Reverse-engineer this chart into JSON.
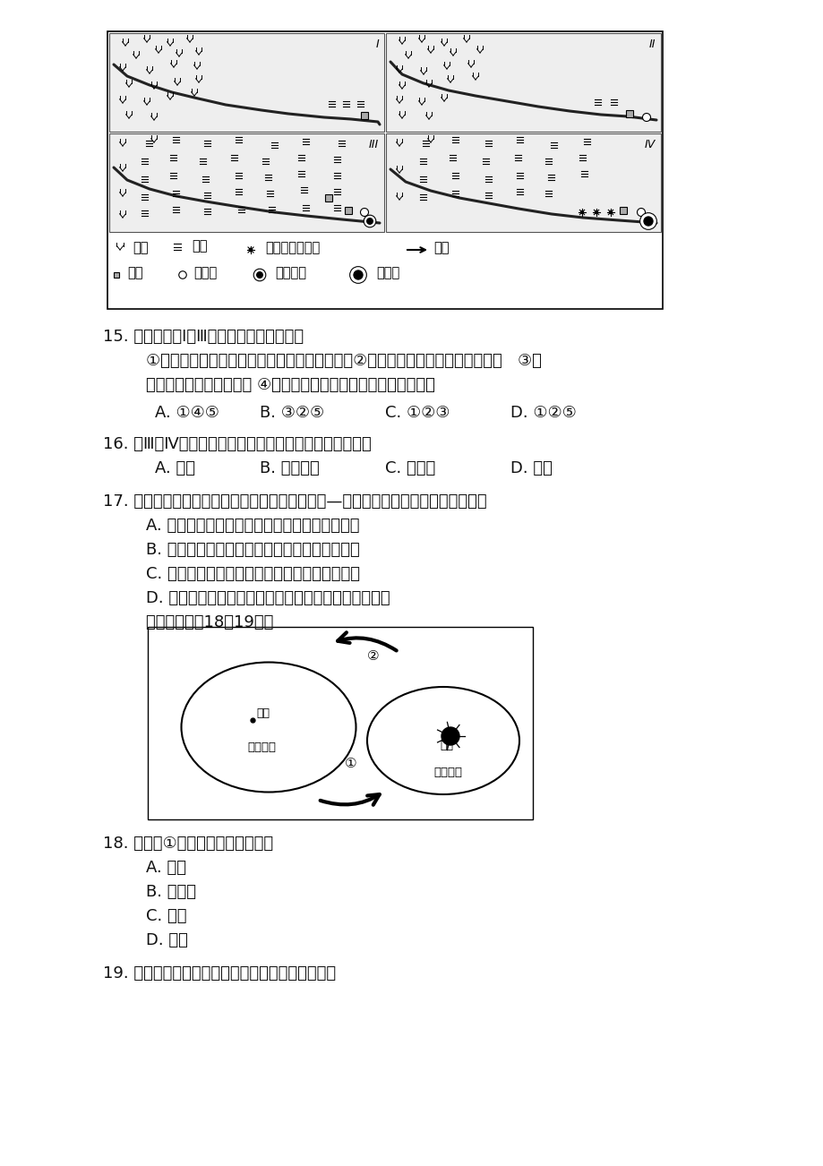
{
  "bg_color": "#ffffff",
  "page_width": 9.2,
  "page_height": 13.02,
  "content": {
    "q15_stem": "15. 有关图中从Ⅰ到Ⅲ阶段的叙述，正确的有",
    "q15_detail1": "    ①图中河流的丰水期流量增大，枯水期流量减小②图中城市人口增加，总人口增加   ③图",
    "q15_detail2": "    示区域出现了城市化现象 ④图中河流夏季流量减小，冬季流量增大",
    "q15_options_A": "    A. ①④⑤",
    "q15_options_B": "B. ③②⑤",
    "q15_options_C": "C. ①②③",
    "q15_options_D": "D. ①②⑤",
    "q16_stem": "16. 从Ⅲ到Ⅳ时期，影响图中农业生产变化的最主要因素是",
    "q16_options_A": "    A. 政策",
    "q16_options_B": "B. 交通运输",
    "q16_options_C": "C. 劳动力",
    "q16_options_D": "D. 市场",
    "q17_stem": "17. 按旅游资源分类，云南石林、神农架、青城山—都江堰、安塞腰鼓一般分别归属于",
    "q17_A": "    A. 地文景观、生物景观、古建筑景观、人文活动",
    "q17_B": "    B. 水域风光、地文景观、人文活动、古建筑景观",
    "q17_C": "    C. 水域风光、生物景观、古建筑景观、人文活动",
    "q17_D": "    D. 地文景观、天象与气候景观、古建筑景观、人文活动",
    "q17_read": "    读下图，完成18～19题。",
    "q18_stem": "18. 沿箭头①方向在区域间调配的是",
    "q18_A": "    A. 资金",
    "q18_B": "    B. 劳动力",
    "q18_C": "    C. 信息",
    "q18_D": "    D. 观念",
    "q19_stem": "19. 图中区域发展水平产生差异的原因，不可能的是",
    "legend1_items": [
      "↗↗林地",
      "≡≡≡耕地",
      "✱花卉和绿化树种",
      "→河流"
    ],
    "legend2_items": [
      "□村庄",
      "○小城镇",
      "◎中等城市",
      "◉大城市"
    ]
  }
}
